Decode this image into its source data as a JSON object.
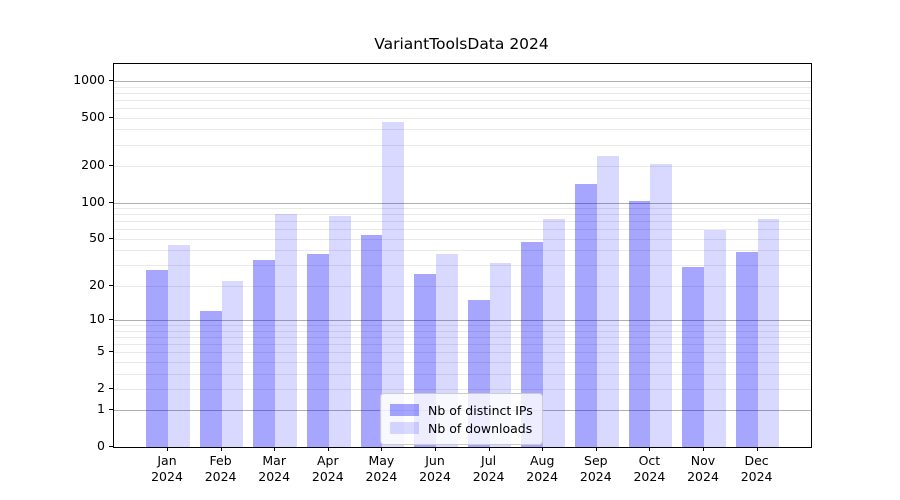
{
  "title": "VariantToolsData 2024",
  "chart_data": {
    "type": "bar",
    "title": "VariantToolsData 2024",
    "scale": "log1p",
    "categories": [
      "Jan",
      "Feb",
      "Mar",
      "Apr",
      "May",
      "Jun",
      "Jul",
      "Aug",
      "Sep",
      "Oct",
      "Nov",
      "Dec"
    ],
    "year_label": "2024",
    "series": [
      {
        "name": "Nb of distinct IPs",
        "color": "rgba(0,0,255,0.35)",
        "values": [
          27,
          12,
          33,
          37,
          54,
          25,
          15,
          47,
          141,
          103,
          29,
          39
        ]
      },
      {
        "name": "Nb of downloads",
        "color": "rgba(0,0,255,0.15)",
        "values": [
          44,
          22,
          80,
          78,
          460,
          37,
          31,
          73,
          242,
          208,
          59,
          73
        ]
      }
    ],
    "yticks": [
      0,
      1,
      2,
      5,
      10,
      20,
      50,
      100,
      200,
      500,
      1000
    ],
    "minor_gridline_values": [
      2,
      3,
      4,
      5,
      6,
      7,
      8,
      9,
      20,
      30,
      40,
      50,
      60,
      70,
      80,
      90,
      200,
      300,
      400,
      500,
      600,
      700,
      800,
      900
    ],
    "major_gridline_values": [
      1,
      10,
      100,
      1000
    ],
    "ylim": [
      0,
      1380
    ],
    "grid": true,
    "legend_position": "lower center",
    "colors": {
      "major_grid": "#b0b0b0",
      "minor_grid": "#e9e9e9",
      "spine": "#000000",
      "text": "#000000",
      "legend_border": "#cccccc"
    }
  }
}
